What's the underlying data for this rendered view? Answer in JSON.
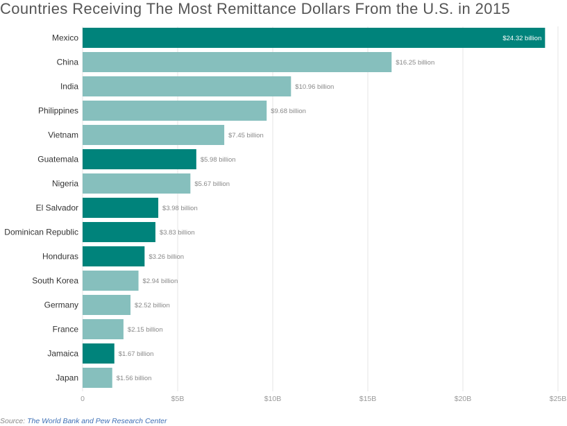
{
  "title": "Countries Receiving The Most Remittance Dollars From the U.S. in 2015",
  "source": {
    "prefix": "Source:",
    "link_text": "The World Bank and Pew Research Center"
  },
  "colors": {
    "highlight": "#00837b",
    "default": "#86bfbd",
    "grid": "#e6e6e6",
    "axis_text": "#999999",
    "category_text": "#333333",
    "label_outside": "#888888",
    "label_inside": "#ffffff"
  },
  "chart_data": {
    "type": "bar",
    "orientation": "horizontal",
    "categories": [
      "Mexico",
      "China",
      "India",
      "Philippines",
      "Vietnam",
      "Guatemala",
      "Nigeria",
      "El Salvador",
      "Dominican Republic",
      "Honduras",
      "South Korea",
      "Germany",
      "France",
      "Jamaica",
      "Japan"
    ],
    "values": [
      24.32,
      16.25,
      10.96,
      9.68,
      7.45,
      5.98,
      5.67,
      3.98,
      3.83,
      3.26,
      2.94,
      2.52,
      2.15,
      1.67,
      1.56
    ],
    "value_labels": [
      "$24.32 billion",
      "$16.25 billion",
      "$10.96 billion",
      "$9.68 billion",
      "$7.45 billion",
      "$5.98 billion",
      "$5.67 billion",
      "$3.98 billion",
      "$3.83 billion",
      "$3.26 billion",
      "$2.94 billion",
      "$2.52 billion",
      "$2.15 billion",
      "$1.67 billion",
      "$1.56 billion"
    ],
    "highlighted": [
      true,
      false,
      false,
      false,
      false,
      true,
      false,
      true,
      true,
      true,
      false,
      false,
      false,
      true,
      false
    ],
    "xlim": [
      0,
      25
    ],
    "x_ticks": [
      0,
      5,
      10,
      15,
      20,
      25
    ],
    "x_tick_labels": [
      "0",
      "$5B",
      "$10B",
      "$15B",
      "$20B",
      "$25B"
    ],
    "grid": true
  }
}
